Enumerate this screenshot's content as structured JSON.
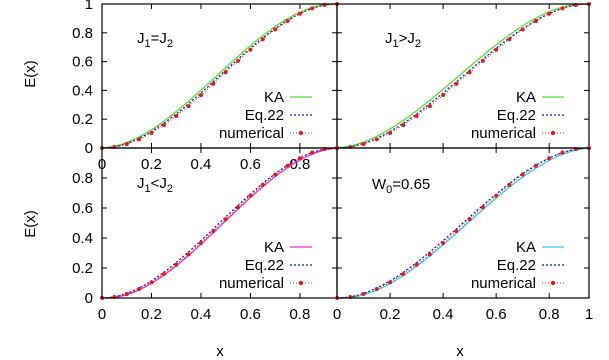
{
  "figure": {
    "panels": [
      {
        "annotation": "J_1=J_2",
        "annotation_main": "J",
        "annotation_sub": "1",
        "annotation_op": "=J",
        "annotation_sub2": "2"
      },
      {
        "annotation": "J_1>J_2",
        "annotation_main": "J",
        "annotation_sub": "1",
        "annotation_op": ">J",
        "annotation_sub2": "2"
      },
      {
        "annotation": "J_1<J_2",
        "annotation_main": "J",
        "annotation_sub": "1",
        "annotation_op": "<J",
        "annotation_sub2": "2"
      },
      {
        "annotation": "W_0=0.65",
        "annotation_main": "W",
        "annotation_sub": "0",
        "annotation_op": "=0.65",
        "annotation_sub2": ""
      }
    ],
    "xlabel": "x",
    "ylabel": "E(x)"
  },
  "chart_data": [
    {
      "type": "line",
      "annotation": "J1=J2",
      "xlabel": "x",
      "ylabel": "E(x)",
      "xlim": [
        0,
        0.95
      ],
      "ylim": [
        0,
        1
      ],
      "x_ticks": [
        "0",
        "0.2",
        "0.4",
        "0.6",
        "0.8"
      ],
      "y_ticks": [
        "0",
        "0.2",
        "0.4",
        "0.6",
        "0.8",
        "1"
      ],
      "legend": "bottom-right",
      "series": [
        {
          "name": "KA",
          "style": "solid",
          "color": "#55dd33",
          "shift": -0.012
        },
        {
          "name": "Eq.22",
          "style": "dashed",
          "color": "#001b8f",
          "shift": 0
        },
        {
          "name": "numerical",
          "style": "dotted-points",
          "color": "#e41a1c",
          "x": [
            0,
            0.05,
            0.1,
            0.15,
            0.2,
            0.25,
            0.3,
            0.35,
            0.4,
            0.45,
            0.5,
            0.55,
            0.6,
            0.65,
            0.7,
            0.75,
            0.8,
            0.85,
            0.9,
            0.95
          ],
          "y": [
            0,
            0.007,
            0.027,
            0.06,
            0.104,
            0.159,
            0.222,
            0.291,
            0.367,
            0.446,
            0.525,
            0.605,
            0.682,
            0.755,
            0.823,
            0.882,
            0.932,
            0.97,
            0.993,
            1.0
          ]
        }
      ]
    },
    {
      "type": "line",
      "annotation": "J1>J2",
      "xlabel": "x",
      "ylabel": "",
      "xlim": [
        0,
        0.95
      ],
      "ylim": [
        0,
        1
      ],
      "legend": "bottom-right",
      "series": [
        {
          "name": "KA",
          "style": "solid",
          "color": "#55dd33",
          "shift": -0.016
        },
        {
          "name": "Eq.22",
          "style": "dashed",
          "color": "#001b8f",
          "shift": 0
        },
        {
          "name": "numerical",
          "style": "dotted-points",
          "color": "#e41a1c",
          "x": [
            0,
            0.05,
            0.1,
            0.15,
            0.2,
            0.25,
            0.3,
            0.35,
            0.4,
            0.45,
            0.5,
            0.55,
            0.6,
            0.65,
            0.7,
            0.75,
            0.8,
            0.85,
            0.9,
            0.95
          ],
          "y": [
            0,
            0.007,
            0.027,
            0.06,
            0.104,
            0.159,
            0.222,
            0.291,
            0.367,
            0.446,
            0.525,
            0.605,
            0.682,
            0.755,
            0.823,
            0.882,
            0.932,
            0.97,
            0.993,
            1.0
          ]
        }
      ]
    },
    {
      "type": "line",
      "annotation": "J1<J2",
      "xlabel": "x",
      "ylabel": "E(x)",
      "xlim": [
        0,
        0.95
      ],
      "ylim": [
        0,
        1
      ],
      "x_ticks": [
        "0",
        "0.2",
        "0.4",
        "0.6",
        "0.8"
      ],
      "y_ticks": [
        "0",
        "0.2",
        "0.4",
        "0.6",
        "0.8"
      ],
      "legend": "bottom-right",
      "series": [
        {
          "name": "KA",
          "style": "solid",
          "color": "#e830d8",
          "shift": 0.016
        },
        {
          "name": "Eq.22",
          "style": "dashed",
          "color": "#001b8f",
          "shift": 0
        },
        {
          "name": "numerical",
          "style": "dotted-points",
          "color": "#e41a1c",
          "x": [
            0,
            0.05,
            0.1,
            0.15,
            0.2,
            0.25,
            0.3,
            0.35,
            0.4,
            0.45,
            0.5,
            0.55,
            0.6,
            0.65,
            0.7,
            0.75,
            0.8,
            0.85,
            0.9,
            0.95
          ],
          "y": [
            0,
            0.007,
            0.027,
            0.06,
            0.104,
            0.159,
            0.222,
            0.291,
            0.367,
            0.446,
            0.525,
            0.605,
            0.682,
            0.755,
            0.823,
            0.882,
            0.932,
            0.97,
            0.993,
            1.0
          ]
        }
      ]
    },
    {
      "type": "line",
      "annotation": "W0=0.65",
      "xlabel": "x",
      "ylabel": "",
      "xlim": [
        0,
        0.95
      ],
      "ylim": [
        0,
        1
      ],
      "x_ticks": [
        "0",
        "0.2",
        "0.4",
        "0.6",
        "0.8",
        "1"
      ],
      "legend": "bottom-right",
      "series": [
        {
          "name": "KA",
          "style": "solid",
          "color": "#33ccee",
          "shift": 0.018
        },
        {
          "name": "Eq.22",
          "style": "dashed",
          "color": "#001b8f",
          "shift": 0
        },
        {
          "name": "numerical",
          "style": "dotted-points",
          "color": "#e41a1c",
          "x": [
            0,
            0.05,
            0.1,
            0.15,
            0.2,
            0.25,
            0.3,
            0.35,
            0.4,
            0.45,
            0.5,
            0.55,
            0.6,
            0.65,
            0.7,
            0.75,
            0.8,
            0.85,
            0.9,
            0.95
          ],
          "y": [
            0,
            0.007,
            0.027,
            0.06,
            0.104,
            0.159,
            0.222,
            0.291,
            0.367,
            0.446,
            0.525,
            0.605,
            0.682,
            0.755,
            0.823,
            0.882,
            0.932,
            0.97,
            0.993,
            1.0
          ]
        }
      ]
    }
  ]
}
